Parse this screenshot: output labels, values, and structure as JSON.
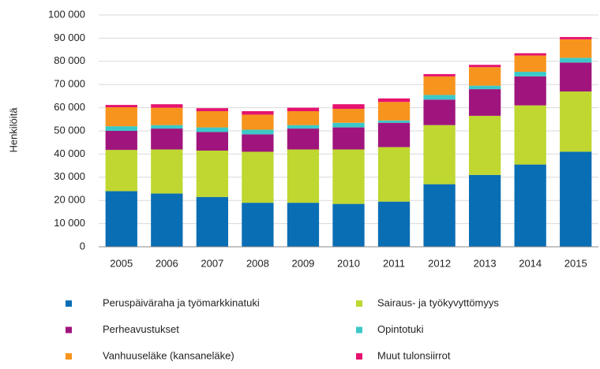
{
  "chart_data": {
    "type": "stacked-bar",
    "y_label": "Henkilöitä",
    "categories": [
      "2005",
      "2006",
      "2007",
      "2008",
      "2009",
      "2010",
      "2011",
      "2012",
      "2013",
      "2014",
      "2015"
    ],
    "series": [
      {
        "name": "Peruspäiväraha ja työmarkkinatuki",
        "color": "#0a6eb4",
        "values": [
          24000,
          23000,
          21500,
          19000,
          19000,
          18500,
          19500,
          27000,
          31000,
          35500,
          41000
        ]
      },
      {
        "name": "Sairaus- ja työkyvyttömyys",
        "color": "#bfd730",
        "values": [
          17800,
          19000,
          20000,
          22000,
          23000,
          23500,
          23500,
          25500,
          25500,
          25500,
          26000
        ]
      },
      {
        "name": "Perheavustukset",
        "color": "#a0157d",
        "values": [
          8200,
          9000,
          8000,
          7500,
          9000,
          9500,
          10500,
          11000,
          11500,
          12500,
          12500
        ]
      },
      {
        "name": "Opintotuki",
        "color": "#3cc8c8",
        "values": [
          2000,
          1500,
          2000,
          2000,
          1500,
          2000,
          1000,
          2000,
          1500,
          2000,
          2000
        ]
      },
      {
        "name": "Vanhuuseläke (kansaneläke)",
        "color": "#f7941d",
        "values": [
          8200,
          7500,
          7000,
          6500,
          6000,
          6000,
          8000,
          8000,
          8000,
          7000,
          8000
        ]
      },
      {
        "name": "Muut tulonsiirrot",
        "color": "#e6126f",
        "values": [
          1000,
          1500,
          1300,
          1500,
          1500,
          2000,
          1500,
          1000,
          1000,
          1000,
          1000
        ]
      }
    ],
    "ylim": [
      0,
      100000
    ],
    "yticks": [
      0,
      {
        "value": 10000,
        "label": "10 000"
      },
      {
        "value": 20000,
        "label": "20 000"
      },
      {
        "value": 30000,
        "label": "30 000"
      },
      {
        "value": 40000,
        "label": "40 000"
      },
      {
        "value": 50000,
        "label": "50 000"
      },
      {
        "value": 60000,
        "label": "60 000"
      },
      {
        "value": 70000,
        "label": "70 000"
      },
      {
        "value": 80000,
        "label": "80 000"
      },
      {
        "value": 90000,
        "label": "90 000"
      },
      {
        "value": 100000,
        "label": "100 000"
      }
    ],
    "grid": true
  }
}
